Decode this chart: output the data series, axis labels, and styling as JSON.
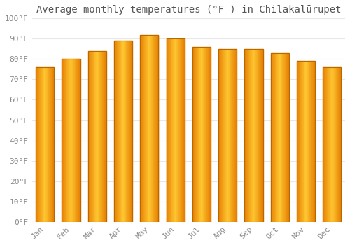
{
  "title": "Average monthly temperatures (°F ) in Chilakalūrupet",
  "months": [
    "Jan",
    "Feb",
    "Mar",
    "Apr",
    "May",
    "Jun",
    "Jul",
    "Aug",
    "Sep",
    "Oct",
    "Nov",
    "Dec"
  ],
  "values": [
    76,
    80,
    84,
    89,
    92,
    90,
    86,
    85,
    85,
    83,
    79,
    76
  ],
  "ylim": [
    0,
    100
  ],
  "yticks": [
    0,
    10,
    20,
    30,
    40,
    50,
    60,
    70,
    80,
    90,
    100
  ],
  "ytick_labels": [
    "0°F",
    "10°F",
    "20°F",
    "30°F",
    "40°F",
    "50°F",
    "60°F",
    "70°F",
    "80°F",
    "90°F",
    "100°F"
  ],
  "background_color": "#ffffff",
  "grid_color": "#e8e8e8",
  "title_fontsize": 10,
  "tick_fontsize": 8,
  "bar_color_left": "#E8890A",
  "bar_color_center": "#FFCC44",
  "bar_color_right": "#E8890A",
  "bar_edge_color": "#B86800",
  "bar_width": 0.7
}
